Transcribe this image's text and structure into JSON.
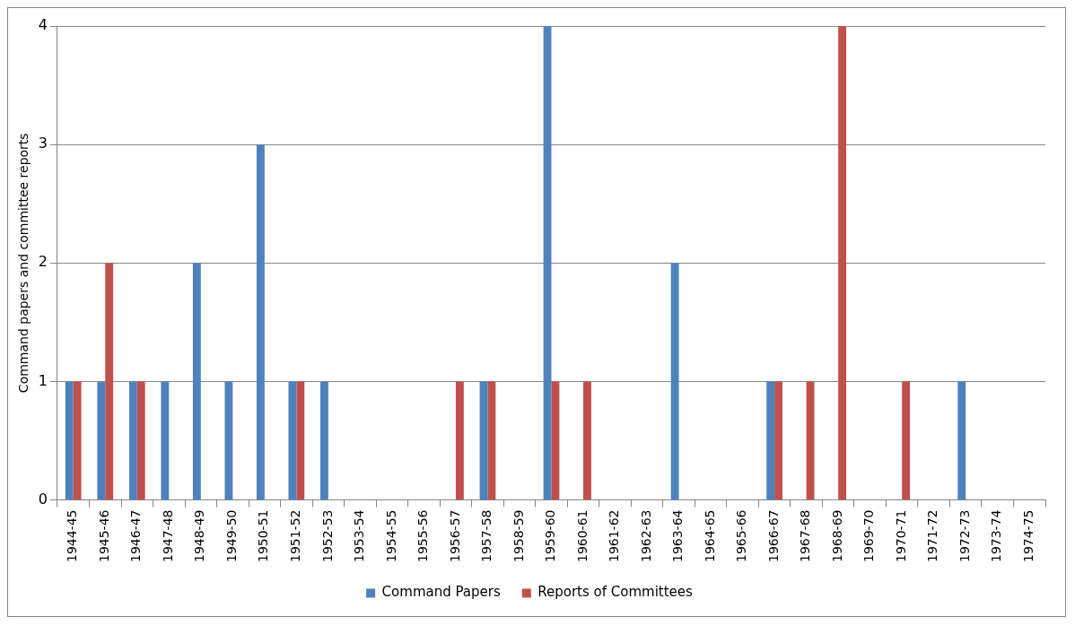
{
  "chart_data": {
    "type": "bar",
    "ylabel": "Command papers and committee reports",
    "categories": [
      "1944-45",
      "1945-46",
      "1946-47",
      "1947-48",
      "1948-49",
      "1949-50",
      "1950-51",
      "1951-52",
      "1952-53",
      "1953-54",
      "1954-55",
      "1955-56",
      "1956-57",
      "1957-58",
      "1958-59",
      "1959-60",
      "1960-61",
      "1961-62",
      "1962-63",
      "1963-64",
      "1964-65",
      "1965-66",
      "1966-67",
      "1967-68",
      "1968-69",
      "1969-70",
      "1970-71",
      "1971-72",
      "1972-73",
      "1973-74",
      "1974-75"
    ],
    "series": [
      {
        "name": "Command Papers",
        "color": "#4f81bd",
        "values": [
          1,
          1,
          1,
          1,
          2,
          1,
          3,
          1,
          1,
          0,
          0,
          0,
          0,
          1,
          0,
          4,
          0,
          0,
          0,
          2,
          0,
          0,
          1,
          0,
          0,
          0,
          0,
          0,
          1,
          0,
          0
        ]
      },
      {
        "name": "Reports of Committees",
        "color": "#c0504d",
        "values": [
          1,
          2,
          1,
          0,
          0,
          0,
          0,
          1,
          0,
          0,
          0,
          0,
          1,
          1,
          0,
          1,
          1,
          0,
          0,
          0,
          0,
          0,
          1,
          1,
          4,
          0,
          1,
          0,
          0,
          0,
          0
        ]
      }
    ],
    "ylim": [
      0,
      4
    ],
    "yticks": [
      0,
      1,
      2,
      3,
      4
    ],
    "grid": "y",
    "legend": "bottom"
  }
}
